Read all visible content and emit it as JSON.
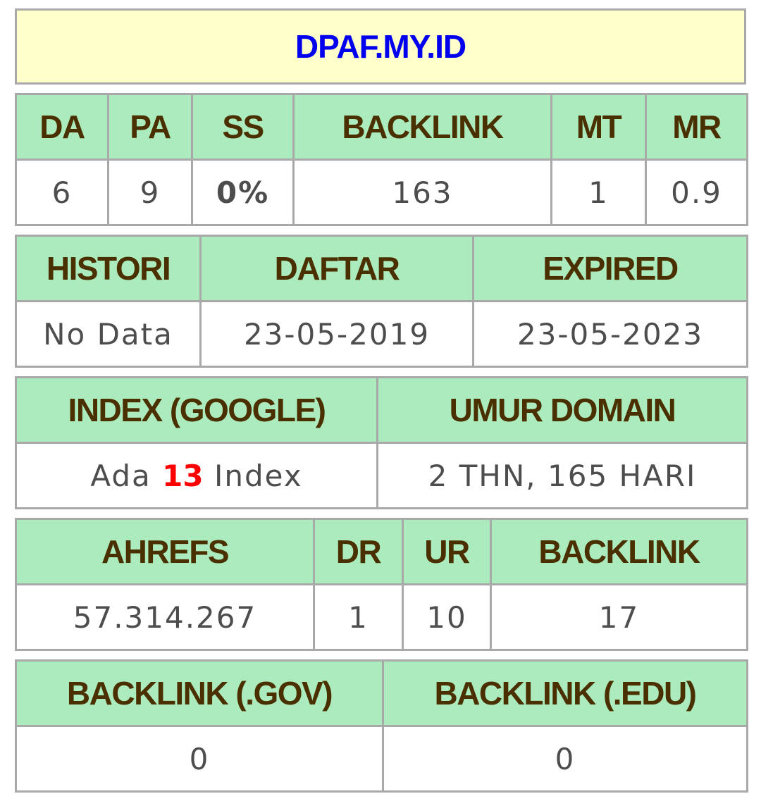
{
  "title": "DPAF.MY.ID",
  "moz": {
    "headers": [
      "DA",
      "PA",
      "SS",
      "BACKLINK",
      "MT",
      "MR"
    ],
    "values": [
      "6",
      "9",
      "0%",
      "163",
      "1",
      "0.9"
    ]
  },
  "dates": {
    "headers": [
      "HISTORI",
      "DAFTAR",
      "EXPIRED"
    ],
    "values": [
      "No Data",
      "23-05-2019",
      "23-05-2023"
    ]
  },
  "index": {
    "headers": [
      "INDEX (GOOGLE)",
      "UMUR DOMAIN"
    ],
    "index_prefix": "Ada",
    "index_count": "13",
    "index_suffix": "Index",
    "age": "2 THN, 165 HARI"
  },
  "ahrefs": {
    "headers": [
      "AHREFS",
      "DR",
      "UR",
      "BACKLINK"
    ],
    "values": [
      "57.314.267",
      "1",
      "10",
      "17"
    ]
  },
  "special": {
    "headers": [
      "BACKLINK (.GOV)",
      "BACKLINK (.EDU)"
    ],
    "values": [
      "0",
      "0"
    ]
  },
  "colors": {
    "title_bg": "#ffffcc",
    "title_text": "#0000ee",
    "header_bg": "#acebbd",
    "header_text": "#4a3000",
    "ss_value": "#7fd01c",
    "index_count": "#ff0000",
    "border": "#a9a9a9"
  }
}
